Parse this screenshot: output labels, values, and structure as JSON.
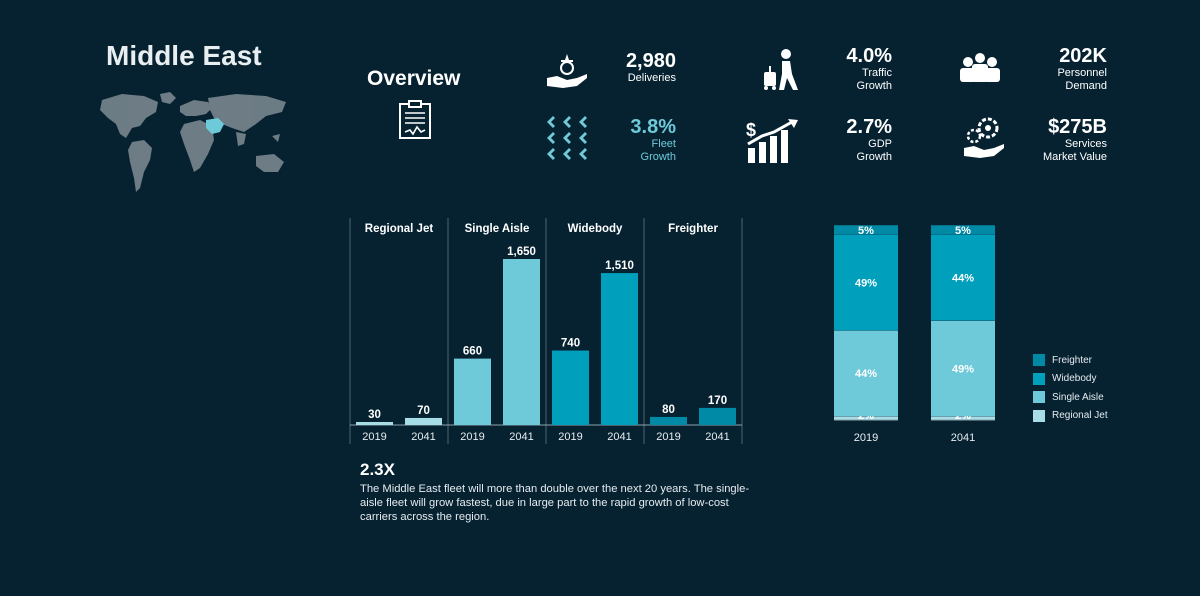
{
  "region": "Middle East",
  "overview": {
    "title": "Overview"
  },
  "stats": [
    {
      "id": "deliveries",
      "value": "2,980",
      "label": [
        "Deliveries"
      ],
      "icon": "hand-with-plane-icon"
    },
    {
      "id": "fleet-growth",
      "value": "3.8%",
      "label": [
        "Fleet",
        "Growth"
      ],
      "icon": "plane-fleet-icon",
      "color": "#6ec9d9"
    },
    {
      "id": "traffic-growth",
      "value": "4.0%",
      "label": [
        "Traffic",
        "Growth"
      ],
      "icon": "traveler-icon"
    },
    {
      "id": "gdp-growth",
      "value": "2.7%",
      "label": [
        "GDP",
        "Growth"
      ],
      "icon": "growth-chart-icon"
    },
    {
      "id": "personnel-demand",
      "value": "202K",
      "label": [
        "Personnel",
        "Demand"
      ],
      "icon": "personnel-icon"
    },
    {
      "id": "services-market-value",
      "value": "$275B",
      "label": [
        "Services",
        "Market Value"
      ],
      "icon": "services-icon"
    }
  ],
  "chart_data": [
    {
      "type": "bar",
      "categories": [
        "Regional Jet",
        "Single Aisle",
        "Widebody",
        "Freighter"
      ],
      "x": [
        "2019",
        "2041"
      ],
      "series": [
        {
          "category": "Regional Jet",
          "values": [
            30,
            70
          ],
          "labels": [
            "30",
            "70"
          ]
        },
        {
          "category": "Single Aisle",
          "values": [
            660,
            1650
          ],
          "labels": [
            "660",
            "1,650"
          ]
        },
        {
          "category": "Widebody",
          "values": [
            740,
            1510
          ],
          "labels": [
            "740",
            "1,510"
          ]
        },
        {
          "category": "Freighter",
          "values": [
            80,
            170
          ],
          "labels": [
            "80",
            "170"
          ]
        }
      ],
      "ylim": [
        0,
        1650
      ],
      "colors": {
        "Regional Jet": "#a7dde6",
        "Single Aisle": "#6ec9d9",
        "Widebody": "#00a0bd",
        "Freighter": "#008aa6"
      }
    },
    {
      "type": "bar",
      "stacked": true,
      "percent": true,
      "categories": [
        "2019",
        "2041"
      ],
      "series": [
        {
          "name": "Regional Jet",
          "values": [
            2,
            2
          ],
          "color": "#a7dde6"
        },
        {
          "name": "Single Aisle",
          "values": [
            44,
            49
          ],
          "color": "#6ec9d9"
        },
        {
          "name": "Widebody",
          "values": [
            49,
            44
          ],
          "color": "#00a0bd"
        },
        {
          "name": "Freighter",
          "values": [
            5,
            5
          ],
          "color": "#008aa6"
        }
      ],
      "legend": {
        "position": "right",
        "order": [
          "Freighter",
          "Widebody",
          "Single Aisle",
          "Regional Jet"
        ]
      }
    }
  ],
  "summary": {
    "value": "2.3X",
    "text": "The Middle East fleet will more than double over the next 20 years. The single-aisle fleet will grow fastest, due in large part to the rapid growth of low-cost carriers across the region."
  }
}
